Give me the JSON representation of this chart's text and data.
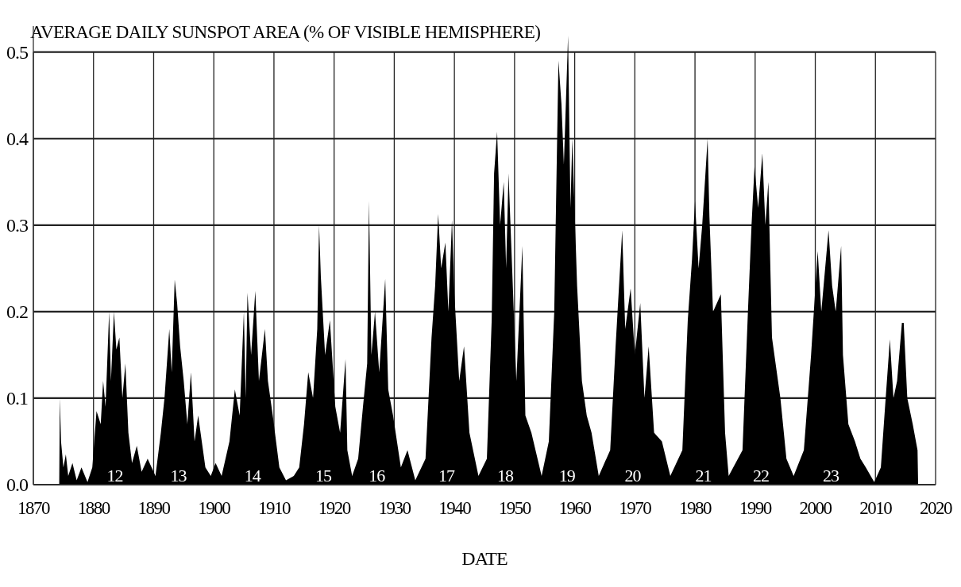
{
  "chart_data": {
    "type": "area",
    "title": "AVERAGE DAILY SUNSPOT AREA (% OF VISIBLE HEMISPHERE)",
    "xlabel": "DATE",
    "xlim": [
      1870,
      2020
    ],
    "xticks": [
      1870,
      1880,
      1890,
      1900,
      1910,
      1920,
      1930,
      1940,
      1950,
      1960,
      1970,
      1980,
      1990,
      2000,
      2010,
      2020
    ],
    "ylim": [
      0,
      0.53
    ],
    "yticks": [
      {
        "value": 0,
        "label": "0.0"
      },
      0.1,
      0.2,
      0.3,
      0.4,
      0.5
    ],
    "grid": true,
    "series": [
      {
        "color": "#000000",
        "x": [
          1874.3,
          1874.4,
          1874.6,
          1875.0,
          1875.4,
          1875.8,
          1876.5,
          1877.2,
          1878.0,
          1879.0,
          1879.8,
          1880.5,
          1881.2,
          1881.6,
          1882.0,
          1882.6,
          1882.9,
          1883.4,
          1883.8,
          1884.3,
          1884.8,
          1885.3,
          1885.8,
          1886.4,
          1887.2,
          1888.0,
          1889.0,
          1890.3,
          1891.2,
          1891.8,
          1892.6,
          1893.0,
          1893.5,
          1893.9,
          1894.4,
          1895.0,
          1895.6,
          1896.2,
          1896.8,
          1897.4,
          1898.6,
          1899.5,
          1900.3,
          1901.3,
          1902.6,
          1903.5,
          1904.3,
          1905.0,
          1905.3,
          1905.6,
          1906.2,
          1906.9,
          1907.5,
          1908.5,
          1909.0,
          1909.8,
          1910.9,
          1912.0,
          1913.3,
          1914.2,
          1915.0,
          1915.7,
          1916.5,
          1917.2,
          1917.5,
          1917.8,
          1918.5,
          1919.3,
          1920.2,
          1921.0,
          1921.9,
          1922.2,
          1923.0,
          1924.0,
          1924.8,
          1925.5,
          1925.8,
          1926.2,
          1926.8,
          1927.5,
          1928.5,
          1929.0,
          1929.8,
          1931.1,
          1932.2,
          1933.5,
          1935.2,
          1936.2,
          1936.8,
          1937.3,
          1937.8,
          1938.5,
          1939.0,
          1939.6,
          1940.0,
          1940.8,
          1941.6,
          1942.5,
          1944.0,
          1945.4,
          1946.2,
          1946.6,
          1947.1,
          1947.6,
          1948.2,
          1948.6,
          1949.0,
          1949.6,
          1950.3,
          1951.3,
          1951.8,
          1952.8,
          1954.5,
          1955.7,
          1956.6,
          1957.3,
          1957.8,
          1958.2,
          1958.9,
          1959.3,
          1959.6,
          1960.4,
          1961.2,
          1962.0,
          1962.8,
          1964.0,
          1965.9,
          1966.8,
          1967.9,
          1968.4,
          1969.3,
          1970.0,
          1970.9,
          1971.6,
          1972.3,
          1973.2,
          1974.5,
          1975.9,
          1977.9,
          1978.8,
          1979.5,
          1980.0,
          1980.6,
          1981.2,
          1982.1,
          1982.4,
          1983.0,
          1984.3,
          1985.0,
          1985.6,
          1987.9,
          1988.8,
          1989.4,
          1989.9,
          1990.5,
          1991.2,
          1991.7,
          1992.2,
          1992.8,
          1994.2,
          1995.2,
          1996.4,
          1998.1,
          1999.3,
          2000.4,
          2001.0,
          2002.2,
          2002.8,
          2003.4,
          2004.3,
          2004.6,
          2005.5,
          2006.6,
          2007.5,
          2008.4,
          2009.8,
          2010.9,
          2011.6,
          2012.4,
          2013.0,
          2013.6,
          2014.4,
          2014.7,
          2015.3,
          2016.2,
          2017.0,
          2017.1
        ],
        "values": [
          0,
          0.1,
          0.05,
          0.02,
          0.035,
          0.01,
          0.025,
          0.005,
          0.02,
          0.003,
          0.02,
          0.085,
          0.07,
          0.12,
          0.09,
          0.2,
          0.12,
          0.2,
          0.156,
          0.17,
          0.1,
          0.14,
          0.06,
          0.025,
          0.045,
          0.015,
          0.03,
          0.01,
          0.06,
          0.1,
          0.18,
          0.13,
          0.237,
          0.21,
          0.16,
          0.12,
          0.07,
          0.13,
          0.05,
          0.08,
          0.02,
          0.01,
          0.025,
          0.01,
          0.05,
          0.11,
          0.08,
          0.2,
          0.1,
          0.222,
          0.15,
          0.224,
          0.12,
          0.18,
          0.12,
          0.08,
          0.02,
          0.005,
          0.01,
          0.02,
          0.07,
          0.13,
          0.1,
          0.18,
          0.3,
          0.24,
          0.15,
          0.19,
          0.09,
          0.06,
          0.145,
          0.04,
          0.01,
          0.03,
          0.09,
          0.14,
          0.328,
          0.15,
          0.2,
          0.13,
          0.238,
          0.11,
          0.08,
          0.02,
          0.04,
          0.005,
          0.03,
          0.17,
          0.23,
          0.313,
          0.25,
          0.28,
          0.2,
          0.306,
          0.22,
          0.12,
          0.16,
          0.06,
          0.01,
          0.03,
          0.19,
          0.36,
          0.408,
          0.3,
          0.35,
          0.25,
          0.36,
          0.25,
          0.12,
          0.276,
          0.08,
          0.06,
          0.01,
          0.05,
          0.2,
          0.49,
          0.44,
          0.37,
          0.519,
          0.32,
          0.4,
          0.23,
          0.12,
          0.08,
          0.06,
          0.01,
          0.04,
          0.16,
          0.294,
          0.18,
          0.227,
          0.15,
          0.21,
          0.1,
          0.16,
          0.06,
          0.05,
          0.01,
          0.04,
          0.19,
          0.26,
          0.328,
          0.25,
          0.3,
          0.4,
          0.31,
          0.2,
          0.22,
          0.06,
          0.01,
          0.04,
          0.2,
          0.3,
          0.368,
          0.32,
          0.383,
          0.3,
          0.35,
          0.17,
          0.1,
          0.03,
          0.01,
          0.04,
          0.15,
          0.27,
          0.2,
          0.294,
          0.23,
          0.2,
          0.276,
          0.15,
          0.07,
          0.05,
          0.03,
          0.02,
          0.003,
          0.02,
          0.09,
          0.168,
          0.1,
          0.12,
          0.187,
          0.187,
          0.1,
          0.07,
          0.04,
          0
        ]
      }
    ],
    "annotations": [
      "12",
      "13",
      "14",
      "15",
      "16",
      "17",
      "18",
      "19",
      "20",
      "21",
      "22",
      "23"
    ]
  }
}
